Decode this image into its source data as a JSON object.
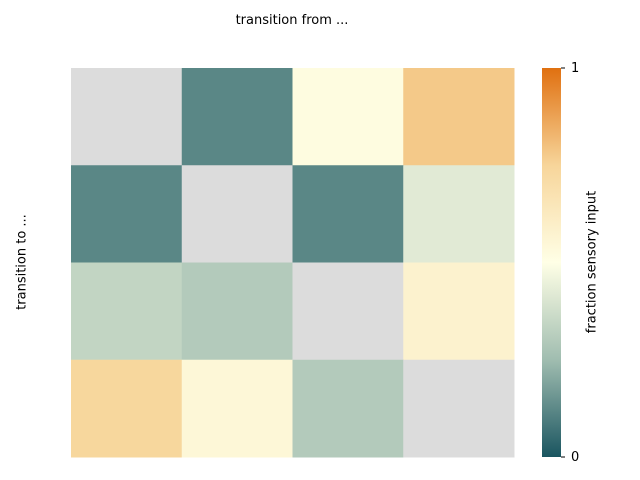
{
  "chart_data": {
    "type": "heatmap",
    "title": "transition from ...",
    "xlabel": "",
    "ylabel": "transition to ...",
    "rows": 4,
    "cols": 4,
    "diagonal_masked": true,
    "values": [
      [
        null,
        0.12,
        0.52,
        0.78
      ],
      [
        0.12,
        null,
        0.12,
        0.42
      ],
      [
        0.34,
        0.3,
        null,
        0.58
      ],
      [
        0.74,
        0.55,
        0.3,
        null
      ]
    ],
    "colorbar": {
      "label": "fraction sensory input",
      "min": 0,
      "max": 1,
      "min_label": "0",
      "max_label": "1",
      "colors": [
        "#1a5560",
        "#a0bdb0",
        "#ffffe6",
        "#f7d59a",
        "#e07010"
      ]
    },
    "masked_color": "#dcdcdc"
  }
}
